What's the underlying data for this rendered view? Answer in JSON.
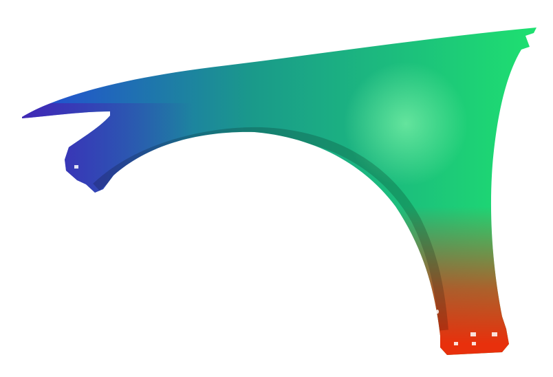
{
  "image": {
    "subject": "car-front-fender",
    "colors": {
      "background": "#ffffff",
      "left_blue": "#2448d8",
      "mid_teal": "#1a9a8a",
      "right_green": "#1ee070",
      "highlight_green": "#7cf0a8",
      "bottom_red": "#e8300c",
      "flange_purple": "#4a1ea8"
    }
  }
}
